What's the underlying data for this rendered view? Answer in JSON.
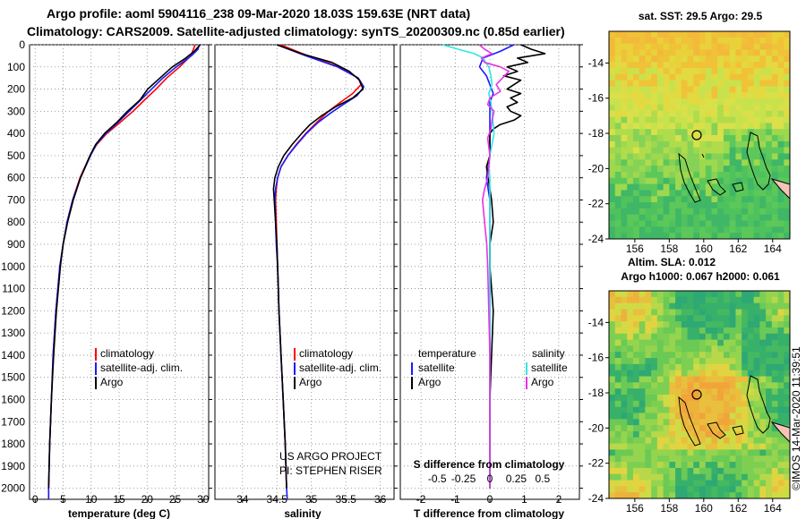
{
  "header": {
    "line1": "Argo profile: aoml 5904116_238 09-Mar-2020 18.03S 159.63E (NRT data)",
    "line2": "Climatology: CARS2009. Satellite-adjusted climatology: synTS_20200309.nc (0.85d earlier)"
  },
  "depth_axis": {
    "ticks": [
      "0",
      "100",
      "200",
      "300",
      "400",
      "500",
      "600",
      "700",
      "800",
      "900",
      "1000",
      "1100",
      "1200",
      "1300",
      "1400",
      "1500",
      "1600",
      "1700",
      "1800",
      "1900",
      "2000"
    ]
  },
  "credits": {
    "line1": "US ARGO PROJECT",
    "line2": "PI: STEPHEN RISER"
  },
  "watermark": "©IMOS 14-Mar-2020 11:39:51",
  "colors": {
    "climatology": "#ff0000",
    "satellite": "#1a1aff",
    "argo": "#000000",
    "satellite_s": "#33e6e6",
    "argo_s": "#e633e6"
  },
  "chart_data": [
    {
      "type": "line",
      "title": "",
      "xlabel": "temperature (deg C)",
      "ylabel": "",
      "xlim": [
        -1,
        31
      ],
      "ylim": [
        2050,
        0
      ],
      "xticks": [
        "0",
        "5",
        "10",
        "15",
        "20",
        "25",
        "30"
      ],
      "legend": {
        "position": "lower-center",
        "entries": [
          "climatology",
          "satellite-adj. clim.",
          "Argo"
        ]
      },
      "series": [
        {
          "name": "climatology",
          "color": "red",
          "depth": [
            0,
            50,
            100,
            150,
            200,
            250,
            300,
            350,
            400,
            450,
            500,
            600,
            700,
            800,
            900,
            1000,
            1200,
            1400,
            1600,
            1800,
            2000,
            2050
          ],
          "values": [
            28.6,
            27.8,
            25.8,
            23.5,
            21.6,
            19.5,
            17.5,
            15.2,
            12.8,
            11.0,
            9.8,
            8.0,
            6.7,
            5.7,
            5.0,
            4.4,
            3.7,
            3.2,
            2.9,
            2.6,
            2.4,
            2.4
          ]
        },
        {
          "name": "satellite-adj. clim.",
          "color": "blue",
          "depth": [
            0,
            20,
            50,
            100,
            150,
            200,
            250,
            300,
            350,
            400,
            450,
            500,
            600,
            700,
            800,
            900,
            1000,
            1200,
            1400,
            1600,
            1800,
            2000,
            2050
          ],
          "values": [
            29.3,
            29.1,
            27.9,
            25.2,
            22.8,
            20.8,
            18.8,
            16.8,
            14.8,
            12.6,
            10.9,
            9.9,
            8.1,
            6.7,
            5.7,
            5.0,
            4.4,
            3.7,
            3.2,
            2.9,
            2.6,
            2.4,
            2.4
          ]
        },
        {
          "name": "Argo",
          "color": "black",
          "depth": [
            0,
            30,
            60,
            100,
            150,
            200,
            250,
            300,
            350,
            400,
            450,
            500,
            600,
            700,
            800,
            900,
            1000,
            1200,
            1400,
            1600,
            1800,
            2000
          ],
          "values": [
            29.5,
            28.4,
            26.9,
            24.5,
            22.3,
            20.1,
            18.7,
            16.5,
            14.6,
            12.4,
            10.8,
            9.8,
            8.1,
            6.8,
            5.8,
            5.0,
            4.5,
            3.8,
            3.3,
            2.9,
            2.6,
            2.4
          ]
        }
      ]
    },
    {
      "type": "line",
      "title": "",
      "xlabel": "salinity",
      "ylabel": "",
      "xlim": [
        33.6,
        36.2
      ],
      "ylim": [
        2050,
        0
      ],
      "xticks": [
        "34",
        "34.5",
        "35",
        "35.5",
        "36"
      ],
      "legend": {
        "position": "lower-center",
        "entries": [
          "climatology",
          "satellite-adj. clim.",
          "Argo"
        ]
      },
      "series": [
        {
          "name": "climatology",
          "color": "red",
          "depth": [
            0,
            50,
            100,
            150,
            180,
            220,
            260,
            300,
            350,
            400,
            450,
            500,
            550,
            600,
            650,
            700,
            800,
            900,
            1000,
            1100,
            1200,
            1400,
            1600,
            1800,
            2000
          ],
          "values": [
            34.55,
            34.95,
            35.4,
            35.68,
            35.72,
            35.6,
            35.42,
            35.25,
            35.08,
            34.92,
            34.78,
            34.66,
            34.56,
            34.51,
            34.49,
            34.48,
            34.49,
            34.5,
            34.51,
            34.52,
            34.53,
            34.56,
            34.59,
            34.62,
            34.64
          ]
        },
        {
          "name": "satellite-adj. clim.",
          "color": "blue",
          "depth": [
            0,
            50,
            100,
            150,
            190,
            230,
            270,
            310,
            350,
            400,
            450,
            500,
            550,
            600,
            650,
            700,
            800,
            900,
            1000,
            1100,
            1200,
            1400,
            1600,
            1800,
            2000,
            2050
          ],
          "values": [
            34.5,
            34.92,
            35.38,
            35.68,
            35.76,
            35.66,
            35.46,
            35.27,
            35.1,
            34.93,
            34.79,
            34.66,
            34.56,
            34.51,
            34.48,
            34.47,
            34.48,
            34.49,
            34.51,
            34.52,
            34.53,
            34.56,
            34.59,
            34.62,
            34.64,
            34.65
          ]
        },
        {
          "name": "Argo",
          "color": "black",
          "depth": [
            0,
            40,
            80,
            120,
            160,
            200,
            240,
            280,
            320,
            360,
            400,
            450,
            500,
            550,
            600,
            650,
            700,
            800,
            900,
            1000,
            1200,
            1400,
            1600,
            1800,
            2000
          ],
          "values": [
            34.5,
            34.85,
            35.3,
            35.55,
            35.7,
            35.75,
            35.6,
            35.35,
            35.15,
            34.98,
            34.86,
            34.72,
            34.6,
            34.52,
            34.47,
            34.45,
            34.46,
            34.48,
            34.5,
            34.51,
            34.53,
            34.56,
            34.59,
            34.62,
            34.64
          ]
        }
      ]
    },
    {
      "type": "line",
      "title": "",
      "xlabel": "T difference from climatology",
      "xlabel2": "S difference from climatology",
      "ylabel": "",
      "xlim": [
        -2.6,
        2.6
      ],
      "ylim": [
        2050,
        0
      ],
      "xticks": [
        "-2",
        "-1",
        "0",
        "1",
        "2"
      ],
      "xticks_s": [
        "-0.5",
        "-0.25",
        "0",
        "0.25",
        "0.5"
      ],
      "legend": {
        "position": "lower",
        "temperature_header": "temperature",
        "salinity_header": "salinity",
        "entries": [
          "satellite",
          "Argo",
          "satellite",
          "Argo"
        ]
      },
      "series": [
        {
          "name": "temperature satellite",
          "color": "blue",
          "depth": [
            0,
            30,
            60,
            100,
            140,
            180,
            220,
            260,
            300,
            350,
            400,
            450,
            500,
            550,
            600,
            650,
            700,
            800,
            900,
            1000,
            1200,
            1400,
            1600,
            1800,
            2000
          ],
          "values": [
            0.7,
            0.3,
            -0.2,
            -0.3,
            -0.1,
            0.0,
            0.1,
            0.0,
            0.0,
            0.0,
            0.0,
            0.0,
            0.0,
            -0.05,
            -0.1,
            -0.05,
            0.0,
            0.0,
            0.0,
            0.0,
            0.0,
            0.0,
            0.0,
            0.0,
            0.0
          ]
        },
        {
          "name": "temperature Argo",
          "color": "black",
          "depth": [
            0,
            20,
            40,
            60,
            80,
            100,
            120,
            140,
            160,
            180,
            200,
            220,
            240,
            260,
            280,
            300,
            320,
            340,
            360,
            380,
            400,
            450,
            500,
            550,
            600,
            650,
            700,
            800,
            900,
            1000,
            1200,
            1400,
            1600,
            1800,
            2000
          ],
          "values": [
            0.9,
            1.2,
            1.6,
            0.8,
            1.1,
            0.5,
            0.8,
            0.4,
            0.9,
            0.7,
            0.5,
            0.9,
            0.6,
            0.8,
            0.5,
            0.6,
            0.9,
            0.7,
            0.3,
            0.1,
            0.0,
            0.0,
            0.0,
            -0.1,
            -0.05,
            0.0,
            0.05,
            0.1,
            0.0,
            0.0,
            0.1,
            0.05,
            0.0,
            0.0,
            0.0
          ]
        },
        {
          "name": "salinity satellite",
          "color": "cyan",
          "depth": [
            0,
            20,
            40,
            60,
            80,
            100,
            140,
            180,
            220,
            260,
            300,
            350,
            400,
            450,
            500,
            550,
            600,
            650,
            700,
            800,
            900,
            1000,
            1200,
            1400,
            1600,
            1800,
            2000
          ],
          "values": [
            -0.45,
            -0.3,
            -0.15,
            -0.06,
            -0.04,
            -0.01,
            0.01,
            0.02,
            -0.01,
            0.01,
            0.02,
            0.03,
            0.04,
            0.02,
            0.0,
            -0.01,
            0.0,
            0.0,
            0.0,
            0.0,
            0.0,
            0.0,
            0.0,
            0.0,
            0.0,
            0.0,
            0.0
          ]
        },
        {
          "name": "salinity Argo",
          "color": "magenta",
          "depth": [
            0,
            20,
            40,
            60,
            80,
            100,
            120,
            150,
            180,
            210,
            240,
            270,
            300,
            340,
            380,
            420,
            460,
            500,
            550,
            600,
            650,
            700,
            800,
            900,
            1000,
            1200,
            1400,
            1600,
            1800,
            2000
          ],
          "values": [
            -0.1,
            -0.05,
            0.02,
            -0.08,
            -0.05,
            0.1,
            0.18,
            0.12,
            0.06,
            0.1,
            0.0,
            -0.02,
            0.04,
            0.02,
            0.01,
            -0.02,
            -0.01,
            0.0,
            -0.01,
            -0.02,
            -0.05,
            -0.07,
            -0.05,
            -0.03,
            -0.02,
            -0.01,
            0.0,
            0.0,
            0.0,
            0.0
          ]
        }
      ]
    },
    {
      "type": "heatmap",
      "title": "sat. SST: 29.5 Argo: 29.5",
      "xlabel": "",
      "ylabel": "",
      "xlim": [
        154.5,
        165
      ],
      "ylim": [
        -24,
        -12.2
      ],
      "xticks": [
        "156",
        "158",
        "160",
        "162",
        "164"
      ],
      "yticks": [
        "-14",
        "-16",
        "-18",
        "-20",
        "-22",
        "-24"
      ],
      "argo_position": {
        "lon": 159.63,
        "lat": -18.03
      }
    },
    {
      "type": "heatmap",
      "title": "Altim. SLA: 0.012",
      "subtitle": "Argo h1000: 0.067 h2000: 0.061",
      "xlabel": "",
      "ylabel": "",
      "xlim": [
        154.5,
        165
      ],
      "ylim": [
        -24,
        -12.2
      ],
      "xticks": [
        "156",
        "158",
        "160",
        "162",
        "164"
      ],
      "yticks": [
        "-14",
        "-16",
        "-18",
        "-20",
        "-22",
        "-24"
      ],
      "argo_position": {
        "lon": 159.63,
        "lat": -18.03
      }
    }
  ]
}
